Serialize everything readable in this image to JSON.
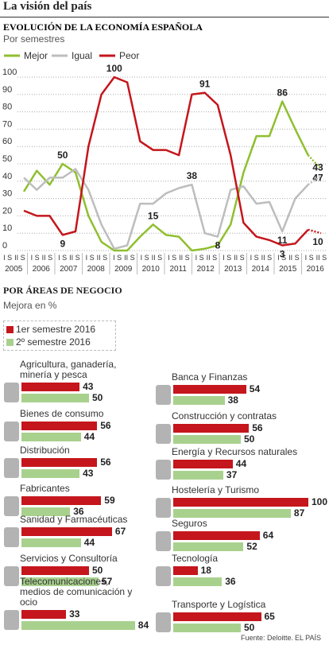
{
  "header": {
    "title": "La visión del país"
  },
  "chart_data": [
    {
      "type": "line",
      "title": "EVOLUCIÓN DE LA ECONOMÍA ESPAÑOLA",
      "subtitle": "Por semestres",
      "categories": [
        "I S",
        "II S",
        "I S",
        "II S",
        "I S",
        "II S",
        "I S",
        "II S",
        "I S",
        "II S",
        "I S",
        "II S",
        "I S",
        "II S",
        "I S",
        "II S",
        "I S",
        "II S",
        "I S",
        "II S",
        "I S",
        "II S",
        "I S",
        "II S"
      ],
      "years": [
        "2005",
        "2006",
        "2007",
        "2008",
        "2009",
        "2010",
        "2011",
        "2012",
        "2013",
        "2014",
        "2015",
        "2016"
      ],
      "series": [
        {
          "name": "Mejor",
          "color": "#8fbf2f",
          "values": [
            34,
            46,
            38,
            50,
            45,
            20,
            5,
            0,
            0,
            8,
            15,
            9,
            8,
            0,
            1,
            3,
            15,
            45,
            66,
            66,
            86,
            70,
            55,
            47
          ],
          "value_labels": [
            null,
            null,
            null,
            "50",
            null,
            null,
            null,
            null,
            null,
            null,
            "15",
            null,
            null,
            null,
            null,
            null,
            null,
            null,
            null,
            null,
            "86",
            null,
            null,
            "47"
          ]
        },
        {
          "name": "Igual",
          "color": "#bdbdbd",
          "values": [
            42,
            35,
            42,
            42,
            47,
            35,
            15,
            1,
            3,
            27,
            27,
            33,
            36,
            38,
            10,
            8,
            35,
            37,
            27,
            28,
            11,
            30,
            38,
            43
          ],
          "value_labels": [
            null,
            null,
            null,
            null,
            null,
            null,
            null,
            null,
            null,
            null,
            null,
            null,
            null,
            "38",
            null,
            "8",
            null,
            null,
            null,
            null,
            "11",
            null,
            null,
            "43"
          ]
        },
        {
          "name": "Peor",
          "color": "#c4161c",
          "values": [
            23,
            20,
            20,
            9,
            11,
            60,
            90,
            100,
            97,
            63,
            58,
            58,
            55,
            90,
            91,
            84,
            55,
            16,
            8,
            6,
            3,
            4,
            12,
            10
          ],
          "value_labels": [
            null,
            null,
            null,
            "9",
            null,
            null,
            null,
            "100",
            null,
            null,
            null,
            null,
            null,
            null,
            "91",
            null,
            null,
            null,
            null,
            null,
            "3",
            null,
            null,
            "10"
          ]
        }
      ],
      "ylim": [
        0,
        100
      ],
      "yticks": [
        0,
        10,
        20,
        30,
        40,
        50,
        60,
        70,
        80,
        90,
        100
      ],
      "grid": true
    },
    {
      "type": "bar",
      "orientation": "horizontal",
      "title": "POR ÁREAS DE NEGOCIO",
      "subtitle": "Mejora en %",
      "categories": [
        "Agricultura, ganadería, minería y pesca",
        "Bienes de consumo",
        "Distribución",
        "Fabricantes",
        "Sanidad y Farmacéuticas",
        "Servicios y Consultoría",
        "Telecomunicaciones, medios de comunicación y ocio",
        "Banca y Finanzas",
        "Construcción y contratas",
        "Energía y Recursos naturales",
        "Hostelería y Turismo",
        "Seguros",
        "Tecnología",
        "Transporte y Logística"
      ],
      "series": [
        {
          "name": "1er semestre 2016",
          "color": "#c4161c",
          "values": [
            43,
            56,
            56,
            59,
            67,
            50,
            33,
            54,
            56,
            44,
            100,
            64,
            18,
            65
          ]
        },
        {
          "name": "2º semestre 2016",
          "color": "#a9d18e",
          "values": [
            50,
            44,
            43,
            36,
            44,
            57,
            84,
            38,
            50,
            37,
            87,
            52,
            36,
            50
          ]
        }
      ],
      "xlim": [
        0,
        100
      ]
    }
  ],
  "footer": {
    "source": "Fuente: Deloitte.",
    "credit": "EL PAÍS"
  }
}
